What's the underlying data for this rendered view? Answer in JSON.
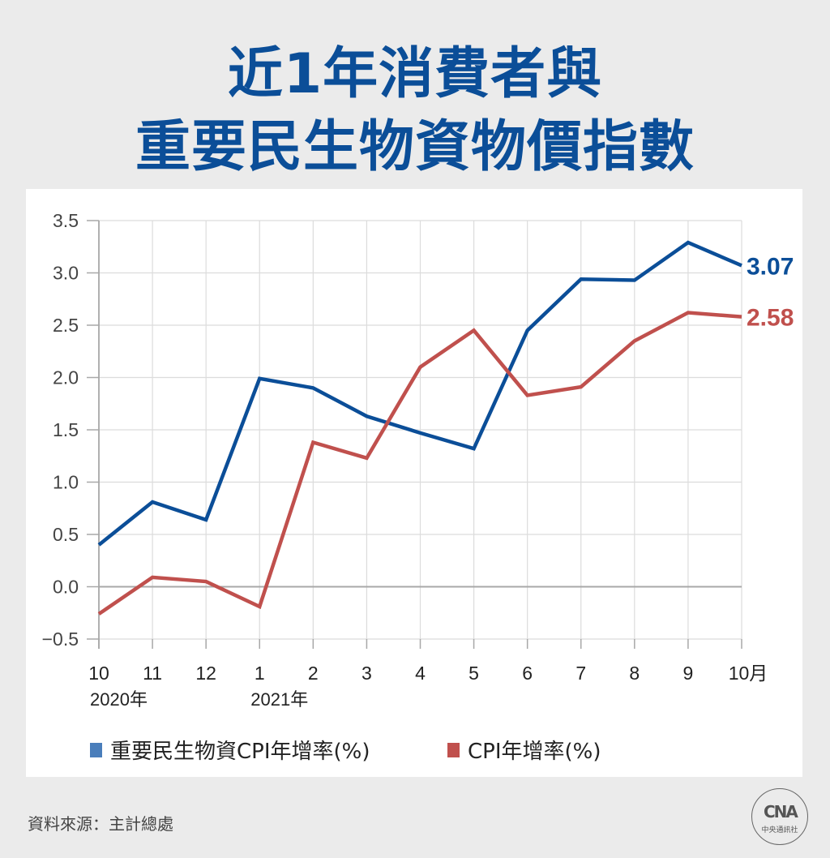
{
  "header": {
    "title_line1": "近1年消費者與",
    "title_line2": "重要民生物資物價指數"
  },
  "legend": {
    "items": [
      {
        "label": "重要民生物資CPI年增率(%)",
        "color": "#4a7ebb"
      },
      {
        "label": "CPI年增率(%)",
        "color": "#c0504d"
      }
    ]
  },
  "footer": {
    "source": "資料來源：主計總處",
    "logo_mark": "CNA",
    "logo_text": "中央通訊社"
  },
  "colors": {
    "title": "#0b4e98",
    "series_blue": "#0b4e98",
    "series_red": "#c0504d",
    "grid": "#dcdcdc",
    "axis": "#a8a8a8"
  },
  "chart_data": {
    "type": "line",
    "title": "近1年消費者與重要民生物資物價指數",
    "xlabel": "",
    "ylabel": "",
    "categories": [
      "10",
      "11",
      "12",
      "1",
      "2",
      "3",
      "4",
      "5",
      "6",
      "7",
      "8",
      "9",
      "10月"
    ],
    "year_labels": [
      {
        "index": 0,
        "label": "2020年"
      },
      {
        "index": 3,
        "label": "2021年"
      }
    ],
    "yticks": [
      "3.5",
      "3.0",
      "2.5",
      "2.0",
      "1.5",
      "1.0",
      "0.5",
      "0.0",
      "−0.5"
    ],
    "ylim": [
      -0.5,
      3.5
    ],
    "grid": true,
    "legend_position": "bottom",
    "series": [
      {
        "name": "重要民生物資CPI年增率(%)",
        "color": "#0b4e98",
        "values": [
          0.4,
          0.81,
          0.64,
          1.99,
          1.9,
          1.63,
          1.47,
          1.32,
          2.45,
          2.94,
          2.93,
          3.29,
          3.07
        ],
        "end_label": "3.07"
      },
      {
        "name": "CPI年增率(%)",
        "color": "#c0504d",
        "values": [
          -0.26,
          0.09,
          0.05,
          -0.19,
          1.38,
          1.23,
          2.1,
          2.45,
          1.83,
          1.91,
          2.35,
          2.62,
          2.58
        ],
        "end_label": "2.58"
      }
    ]
  }
}
